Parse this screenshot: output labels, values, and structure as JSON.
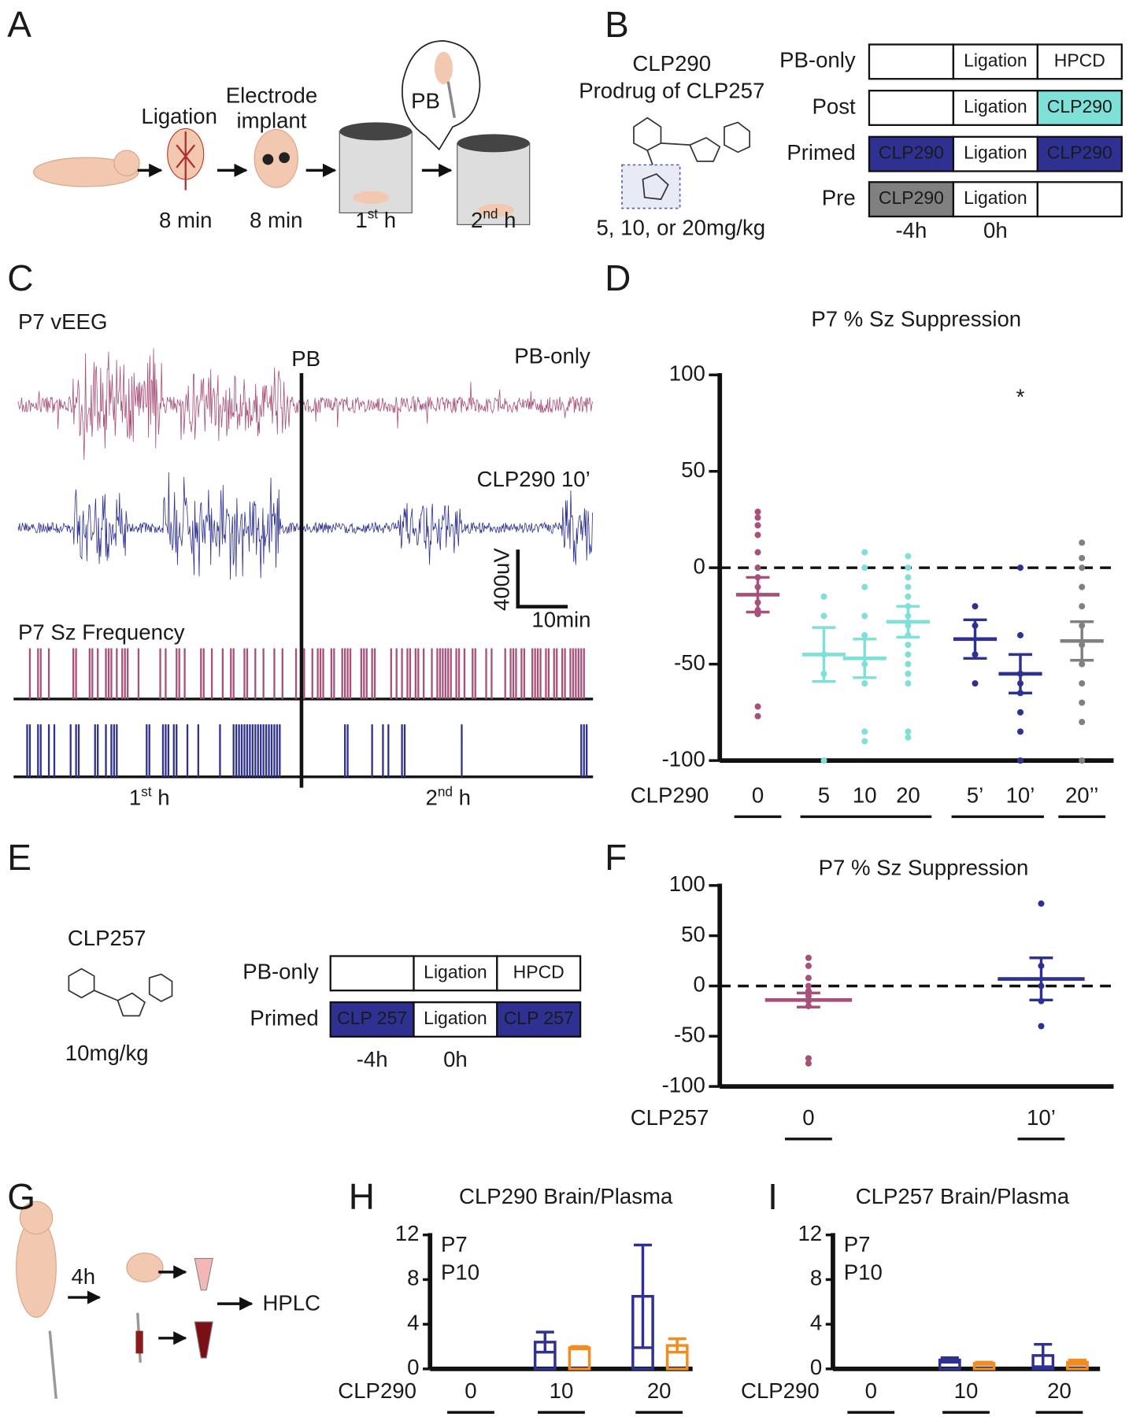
{
  "panel_labels": [
    "A",
    "B",
    "C",
    "D",
    "E",
    "F",
    "G",
    "H",
    "I"
  ],
  "panel_a": {
    "ligation": "Ligation",
    "electrode": [
      "Electrode",
      "implant"
    ],
    "times": [
      "8 min",
      "8 min"
    ],
    "hours": [
      [
        "1",
        "st",
        " h"
      ],
      [
        "2",
        "nd",
        " h"
      ]
    ],
    "drug": "PB"
  },
  "panel_b": {
    "title": "CLP290",
    "subtitle": "Prodrug of CLP257",
    "dose": "5, 10, or 20mg/kg",
    "rows": [
      {
        "name": "PB-only",
        "color": "#a8507a",
        "cells": [
          null,
          "Ligation",
          "HPCD"
        ],
        "fills": [
          null,
          null,
          null
        ]
      },
      {
        "name": "Post",
        "color": "#7fe0d8",
        "cells": [
          null,
          "Ligation",
          "CLP290"
        ],
        "fills": [
          null,
          null,
          "#7fe0d8"
        ]
      },
      {
        "name": "Primed",
        "color": "#2e3192",
        "cells": [
          "CLP290",
          "Ligation",
          "CLP290"
        ],
        "fills": [
          "#2e3192",
          null,
          "#2e3192"
        ]
      },
      {
        "name": "Pre",
        "color": "#808080",
        "cells": [
          "CLP290",
          "Ligation",
          null
        ],
        "fills": [
          "#808080",
          null,
          null
        ]
      }
    ],
    "times": [
      "-4h",
      "0h"
    ]
  },
  "panel_c": {
    "eeg_label": "P7 vEEG",
    "marker": "PB",
    "traces": [
      {
        "name": "PB-only",
        "color": "#a8507a"
      },
      {
        "name": "CLP290 10’",
        "color": "#2e3192"
      }
    ],
    "scale_y": "400uV",
    "scale_x": "10min",
    "freq_label": "P7 Sz Frequency",
    "hours": [
      [
        "1",
        "st",
        " h"
      ],
      [
        "2",
        "nd",
        " h"
      ]
    ]
  },
  "panel_e": {
    "title": "CLP257",
    "dose": "10mg/kg",
    "rows": [
      {
        "name": "PB-only",
        "color": "#a8507a",
        "cells": [
          null,
          "Ligation",
          "HPCD"
        ],
        "fills": [
          null,
          null,
          null
        ]
      },
      {
        "name": "Primed",
        "color": "#2e3192",
        "cells": [
          "CLP 257",
          "Ligation",
          "CLP 257"
        ],
        "fills": [
          "#2e3192",
          null,
          "#2e3192"
        ]
      }
    ],
    "times": [
      "-4h",
      "0h"
    ]
  },
  "panel_g": {
    "time": "4h",
    "assay": "HPLC"
  },
  "chart_data": [
    {
      "type": "dot",
      "title": "P7 % Sz Suppression",
      "x_label": "CLP290",
      "categories": [
        "0",
        "5",
        "10",
        "20",
        "5’",
        "10’",
        "20’’"
      ],
      "colors": [
        "#a8507a",
        "#7fe0d8",
        "#7fe0d8",
        "#7fe0d8",
        "#2e3192",
        "#2e3192",
        "#808080"
      ],
      "means": [
        -14,
        -45,
        -47,
        -28,
        -37,
        -55,
        -38
      ],
      "errors": [
        9,
        14,
        10,
        8,
        10,
        10,
        10
      ],
      "points": [
        [
          29,
          26,
          22,
          17,
          8,
          0,
          -5,
          -10,
          -18,
          -22,
          -24,
          -72,
          -77
        ],
        [
          -15,
          -25,
          -45,
          -55,
          -100
        ],
        [
          8,
          0,
          -10,
          -25,
          -35,
          -50,
          -60,
          -85,
          -90
        ],
        [
          6,
          0,
          -5,
          -10,
          -15,
          -20,
          -25,
          -30,
          -35,
          -40,
          -45,
          -50,
          -55,
          -60,
          -85,
          -88
        ],
        [
          -20,
          -30,
          -45,
          -60
        ],
        [
          0,
          -35,
          -55,
          -60,
          -65,
          -75,
          -85,
          -100
        ],
        [
          13,
          5,
          0,
          -10,
          -20,
          -30,
          -40,
          -50,
          -60,
          -70,
          -80,
          -100
        ]
      ],
      "groups": [
        [
          0
        ],
        [
          1,
          2,
          3
        ],
        [
          4,
          5
        ],
        [
          6
        ]
      ],
      "annotation": "*",
      "reference_line": 0,
      "ylim": [
        -100,
        100
      ],
      "yticks": [
        -100,
        -50,
        0,
        50,
        100
      ]
    },
    {
      "type": "dot",
      "title": "P7 % Sz Suppression",
      "x_label": "CLP257",
      "categories": [
        "0",
        "10’"
      ],
      "colors": [
        "#a8507a",
        "#2e3192"
      ],
      "means": [
        -14,
        7
      ],
      "errors": [
        7,
        21
      ],
      "points": [
        [
          28,
          20,
          8,
          0,
          -5,
          -10,
          -15,
          -20,
          -72,
          -77
        ],
        [
          82,
          20,
          0,
          -15,
          -40
        ]
      ],
      "groups": [
        [
          0
        ],
        [
          1
        ]
      ],
      "reference_line": 0,
      "ylim": [
        -100,
        100
      ],
      "yticks": [
        -100,
        -50,
        0,
        50,
        100
      ]
    },
    {
      "type": "bar",
      "title": "CLP290 Brain/Plasma",
      "x_label": "CLP290",
      "categories": [
        "0",
        "10",
        "20"
      ],
      "series": [
        {
          "name": "P7",
          "color": "#2e3192",
          "values": [
            null,
            2.4,
            6.5
          ],
          "errors": [
            null,
            0.9,
            4.6
          ]
        },
        {
          "name": "P10",
          "color": "#f28c1e",
          "values": [
            null,
            1.9,
            2.1
          ],
          "errors": [
            null,
            0.1,
            0.6
          ]
        }
      ],
      "ylim": [
        0,
        12
      ],
      "yticks": [
        0,
        4,
        8,
        12
      ]
    },
    {
      "type": "bar",
      "title": "CLP257 Brain/Plasma",
      "x_label": "CLP290",
      "categories": [
        "0",
        "10",
        "20"
      ],
      "series": [
        {
          "name": "P7",
          "color": "#2e3192",
          "values": [
            null,
            0.8,
            1.2
          ],
          "errors": [
            null,
            0.2,
            1.0
          ]
        },
        {
          "name": "P10",
          "color": "#f28c1e",
          "values": [
            null,
            0.5,
            0.6
          ],
          "errors": [
            null,
            0.1,
            0.2
          ]
        }
      ],
      "ylim": [
        0,
        12
      ],
      "yticks": [
        0,
        4,
        8,
        12
      ]
    }
  ]
}
